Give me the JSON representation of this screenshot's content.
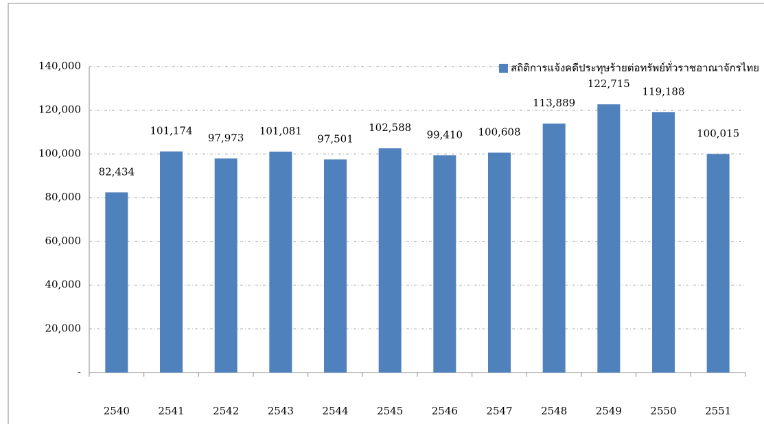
{
  "chart_data": {
    "type": "bar",
    "categories": [
      "2540",
      "2541",
      "2542",
      "2543",
      "2544",
      "2545",
      "2546",
      "2547",
      "2548",
      "2549",
      "2550",
      "2551"
    ],
    "series": [
      {
        "name": "สถิติการแจ้งคดีประทุษร้ายต่อทรัพย์ทั่วราชอาณาจักรไทย",
        "color": "#4f81bd",
        "values": [
          82434,
          101174,
          97973,
          101081,
          97501,
          102588,
          99410,
          100608,
          113889,
          122715,
          119188,
          100015
        ],
        "value_labels": [
          "82,434",
          "101,174",
          "97,973",
          "101,081",
          "97,501",
          "102,588",
          "99,410",
          "100,608",
          "113,889",
          "122,715",
          "119,188",
          "100,015"
        ]
      }
    ],
    "ylim": [
      0,
      140000
    ],
    "yticks": [
      {
        "value": 0,
        "label": "-"
      },
      {
        "value": 20000,
        "label": "20,000"
      },
      {
        "value": 40000,
        "label": "40,000"
      },
      {
        "value": 60000,
        "label": "60,000"
      },
      {
        "value": 80000,
        "label": "80,000"
      },
      {
        "value": 100000,
        "label": "100,000"
      },
      {
        "value": 120000,
        "label": "120,000"
      },
      {
        "value": 140000,
        "label": "140,000"
      }
    ],
    "grid": true,
    "legend": "top-right"
  }
}
